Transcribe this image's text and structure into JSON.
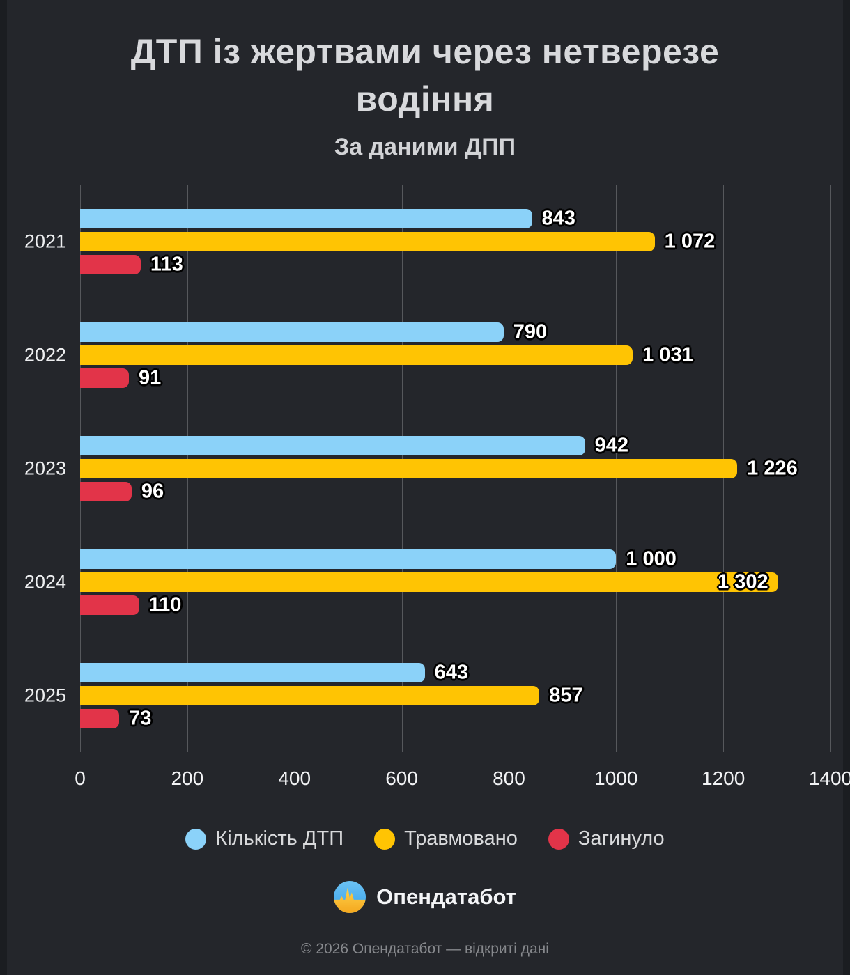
{
  "title": "ДТП із жертвами через нетверезе водіння",
  "subtitle": "За даними ДПП",
  "chart_data": {
    "type": "bar",
    "orientation": "horizontal",
    "title": "ДТП із жертвами через нетверезе водіння",
    "subtitle": "За даними ДПП",
    "categories": [
      "2021",
      "2022",
      "2023",
      "2024",
      "2025"
    ],
    "series": [
      {
        "name": "Кількість ДТП",
        "color": "#8BD2F9",
        "values": [
          843,
          790,
          942,
          1000,
          643
        ],
        "labels": [
          "843",
          "790",
          "942",
          "1 000",
          "643"
        ]
      },
      {
        "name": "Травмовано",
        "color": "#FFC403",
        "values": [
          1072,
          1031,
          1226,
          1302,
          857
        ],
        "labels": [
          "1 072",
          "1 031",
          "1 226",
          "1 302",
          "857"
        ]
      },
      {
        "name": "Загинуло",
        "color": "#E23449",
        "values": [
          113,
          91,
          96,
          110,
          73
        ],
        "labels": [
          "113",
          "91",
          "96",
          "110",
          "73"
        ]
      }
    ],
    "xlim": [
      0,
      1400
    ],
    "xticks": [
      0,
      200,
      400,
      600,
      800,
      1000,
      1200,
      1400
    ],
    "grid": true,
    "legend_position": "bottom"
  },
  "logo": {
    "text": "Опендатабот",
    "icon": "opendatabot-flag-pulse-icon"
  },
  "footer": "© 2026 Опендатабот — відкриті дані",
  "colors": {
    "background": "#24262B",
    "gridline": "#56585C",
    "title_text": "#D8D9DC",
    "value_text": "#FFFFFF",
    "blue": "#8BD2F9",
    "yellow": "#FFC403",
    "red": "#E23449"
  }
}
